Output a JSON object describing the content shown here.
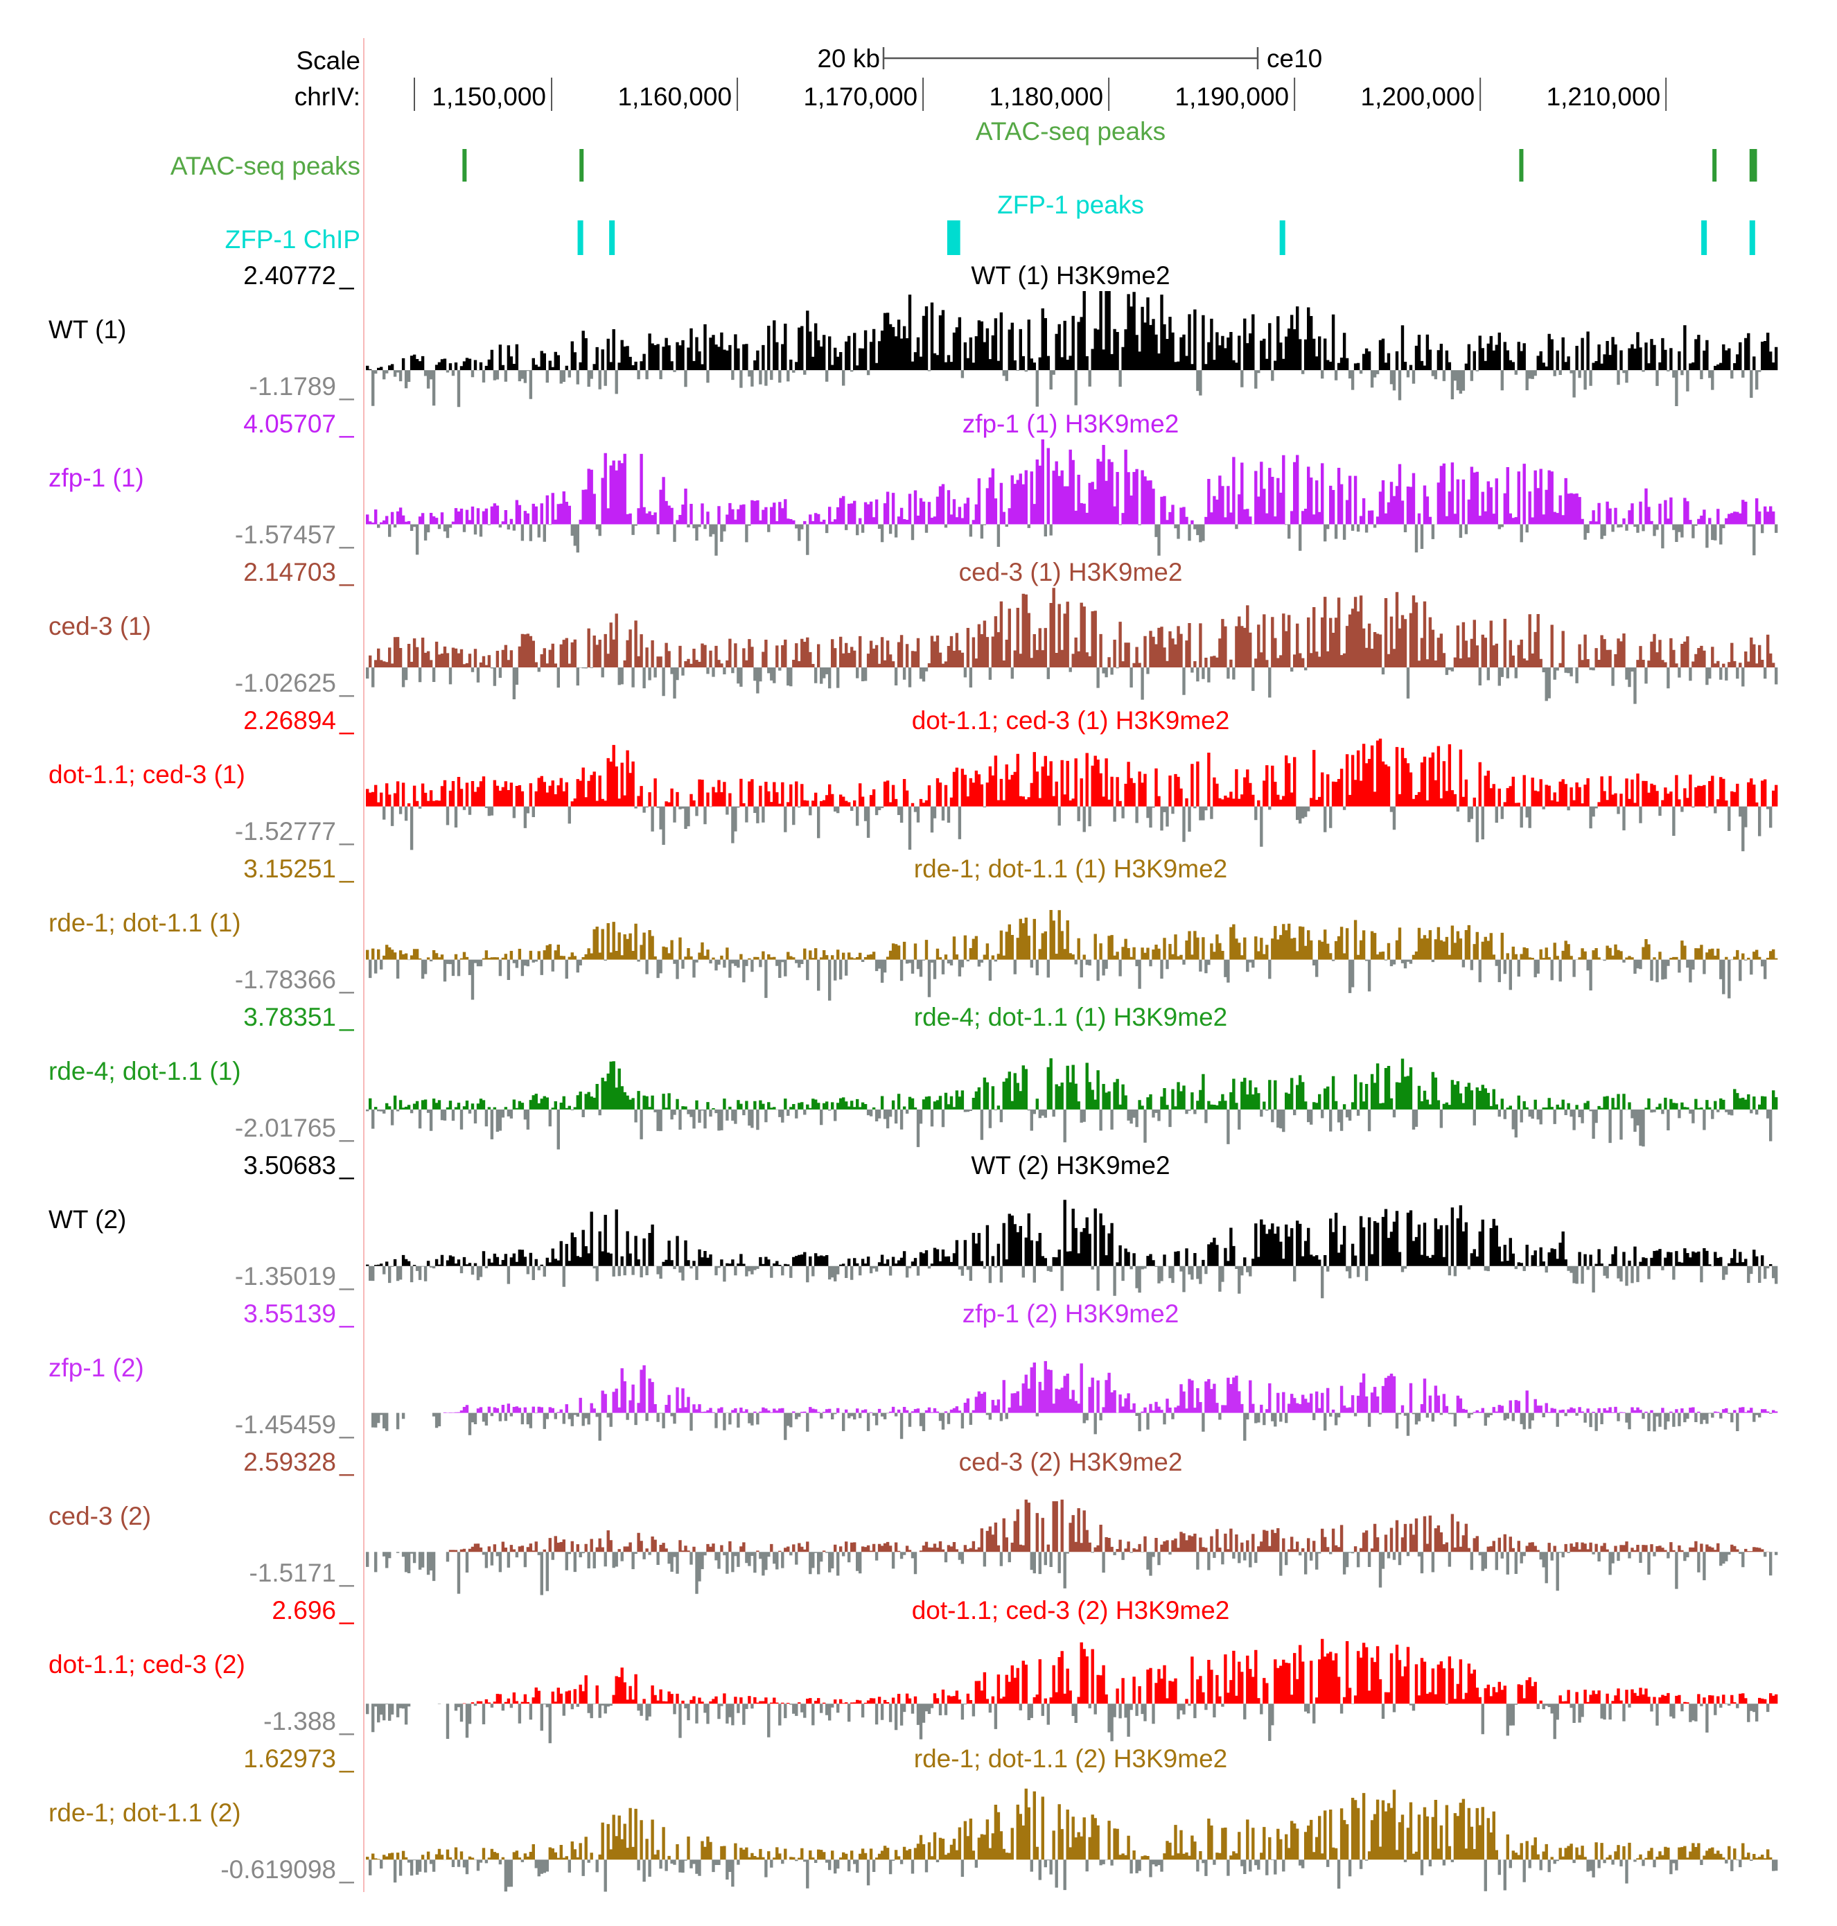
{
  "header": {
    "scale_label": "Scale",
    "scale_bar_label": "20 kb",
    "assembly": "ce10",
    "chrom_label": "chrIV:",
    "ticks": [
      "1,150,000",
      "1,160,000",
      "1,170,000",
      "1,180,000",
      "1,190,000",
      "1,200,000",
      "1,210,000"
    ]
  },
  "region": {
    "start": 1140000,
    "end": 1216000,
    "tick_values": [
      1150000,
      1160000,
      1170000,
      1180000,
      1190000,
      1200000,
      1210000
    ]
  },
  "colors": {
    "neg": "#808888",
    "atac": "#2e9a35",
    "zfp": "#00dcd0"
  },
  "peak_tracks": [
    {
      "id": "atac",
      "label": "ATAC-seq peaks",
      "title": "ATAC-seq peaks",
      "color": "#2e9a35",
      "peaks": [
        [
          1145200,
          1145400
        ],
        [
          1151500,
          1151700
        ],
        [
          1202100,
          1202300
        ],
        [
          1212500,
          1212700
        ],
        [
          1214500,
          1214900
        ]
      ]
    },
    {
      "id": "zfp",
      "label": "ZFP-1 ChIP",
      "title": "ZFP-1 peaks",
      "color": "#00dcd0",
      "peaks": [
        [
          1151400,
          1151700
        ],
        [
          1153100,
          1153400
        ],
        [
          1171300,
          1172000
        ],
        [
          1189200,
          1189500
        ],
        [
          1211900,
          1212200
        ],
        [
          1214500,
          1214800
        ]
      ]
    }
  ],
  "signal_tracks": [
    {
      "label": "WT (1)",
      "title": "WT (1) H3K9me2",
      "max": "2.40772",
      "min": "-1.1789",
      "max_val": 2.40772,
      "min_val": -1.1789,
      "color": "#000000",
      "profile": [
        0.05,
        0.05,
        0.2,
        0.15,
        0.1,
        0.15,
        0.1,
        0.25,
        0.3,
        0.2,
        0.2,
        0.35,
        0.35,
        0.4,
        0.3,
        0.35,
        0.3,
        0.45,
        0.4,
        0.35,
        0.3,
        0.4,
        0.5,
        0.65,
        0.45,
        0.3,
        0.35,
        0.4,
        0.6,
        0.7,
        0.65,
        0.55,
        0.55,
        0.5,
        0.6,
        0.6,
        0.55,
        0.5,
        0.75,
        0.9,
        0.85,
        0.75,
        0.7,
        0.65,
        0.55,
        0.45,
        0.45,
        0.5,
        0.45,
        0.55,
        0.65,
        0.55,
        0.45,
        0.3,
        0.35,
        0.4,
        0.35,
        0.3,
        0.35,
        0.3,
        0.4,
        0.35,
        0.3,
        0.35,
        0.3,
        0.35,
        0.3,
        0.3,
        0.4,
        0.35,
        0.4,
        0.35,
        0.3,
        0.35,
        0.3,
        0.35
      ]
    },
    {
      "label": "zfp-1 (1)",
      "title": "zfp-1 (1) H3K9me2",
      "max": "4.05707",
      "min": "-1.57457",
      "max_val": 4.05707,
      "min_val": -1.57457,
      "color": "#c222f5",
      "profile": [
        0.1,
        0.15,
        0.15,
        0.1,
        0.1,
        0.15,
        0.15,
        0.2,
        0.2,
        0.2,
        0.3,
        0.3,
        0.55,
        0.7,
        0.65,
        0.55,
        0.35,
        0.3,
        0.2,
        0.2,
        0.2,
        0.2,
        0.25,
        0.2,
        0.2,
        0.2,
        0.3,
        0.3,
        0.3,
        0.25,
        0.4,
        0.35,
        0.3,
        0.45,
        0.55,
        0.65,
        0.75,
        0.8,
        0.75,
        0.7,
        0.65,
        0.55,
        0.3,
        0.2,
        0.3,
        0.45,
        0.55,
        0.6,
        0.55,
        0.6,
        0.55,
        0.5,
        0.45,
        0.5,
        0.45,
        0.5,
        0.5,
        0.55,
        0.55,
        0.5,
        0.45,
        0.5,
        0.55,
        0.5,
        0.45,
        0.15,
        0.2,
        0.25,
        0.3,
        0.2,
        0.25,
        0.3,
        0.2,
        0.2,
        0.25,
        0.2
      ]
    },
    {
      "label": "ced-3 (1)",
      "title": "ced-3 (1) H3K9me2",
      "max": "2.14703",
      "min": "-1.02625",
      "max_val": 2.14703,
      "min_val": -1.02625,
      "color": "#a54c3a",
      "profile": [
        0.25,
        0.3,
        0.25,
        0.3,
        0.2,
        0.25,
        0.2,
        0.25,
        0.3,
        0.3,
        0.3,
        0.3,
        0.45,
        0.55,
        0.5,
        0.45,
        0.35,
        0.3,
        0.3,
        0.3,
        0.3,
        0.25,
        0.3,
        0.3,
        0.3,
        0.3,
        0.3,
        0.25,
        0.3,
        0.3,
        0.3,
        0.3,
        0.35,
        0.5,
        0.6,
        0.7,
        0.75,
        0.7,
        0.6,
        0.55,
        0.45,
        0.3,
        0.35,
        0.4,
        0.45,
        0.5,
        0.5,
        0.6,
        0.55,
        0.55,
        0.6,
        0.65,
        0.6,
        0.7,
        0.75,
        0.7,
        0.6,
        0.55,
        0.5,
        0.5,
        0.5,
        0.45,
        0.5,
        0.4,
        0.35,
        0.3,
        0.3,
        0.3,
        0.35,
        0.3,
        0.3,
        0.3,
        0.25,
        0.3,
        0.3,
        0.3
      ]
    },
    {
      "label": "dot-1.1; ced-3 (1)",
      "title": "dot-1.1; ced-3 (1) H3K9me2",
      "max": "2.26894",
      "min": "-1.52777",
      "max_val": 2.26894,
      "min_val": -1.52777,
      "color": "#ff0000",
      "profile": [
        0.2,
        0.25,
        0.25,
        0.25,
        0.3,
        0.3,
        0.3,
        0.35,
        0.3,
        0.35,
        0.3,
        0.35,
        0.45,
        0.65,
        0.55,
        0.35,
        0.3,
        0.3,
        0.3,
        0.25,
        0.3,
        0.3,
        0.25,
        0.25,
        0.25,
        0.25,
        0.25,
        0.2,
        0.3,
        0.35,
        0.4,
        0.45,
        0.5,
        0.55,
        0.5,
        0.55,
        0.55,
        0.6,
        0.55,
        0.6,
        0.55,
        0.45,
        0.4,
        0.45,
        0.45,
        0.55,
        0.6,
        0.55,
        0.6,
        0.55,
        0.6,
        0.55,
        0.6,
        0.65,
        0.7,
        0.65,
        0.6,
        0.65,
        0.7,
        0.55,
        0.3,
        0.3,
        0.35,
        0.3,
        0.3,
        0.3,
        0.3,
        0.3,
        0.35,
        0.3,
        0.35,
        0.3,
        0.35,
        0.3,
        0.35,
        0.35
      ]
    },
    {
      "label": "rde-1; dot-1.1 (1)",
      "title": "rde-1; dot-1.1 (1) H3K9me2",
      "max": "3.15251",
      "min": "-1.78366",
      "max_val": 3.15251,
      "min_val": -1.78366,
      "color": "#a3750f",
      "profile": [
        0.1,
        0.15,
        0.1,
        0.1,
        0.1,
        0.1,
        0.1,
        0.1,
        0.1,
        0.15,
        0.15,
        0.15,
        0.3,
        0.4,
        0.35,
        0.3,
        0.25,
        0.2,
        0.15,
        0.15,
        0.1,
        0.1,
        0.15,
        0.15,
        0.1,
        0.1,
        0.1,
        0.1,
        0.15,
        0.2,
        0.2,
        0.2,
        0.25,
        0.3,
        0.35,
        0.55,
        0.5,
        0.45,
        0.4,
        0.35,
        0.3,
        0.1,
        0.2,
        0.25,
        0.3,
        0.3,
        0.35,
        0.4,
        0.35,
        0.35,
        0.3,
        0.3,
        0.35,
        0.4,
        0.35,
        0.35,
        0.3,
        0.35,
        0.4,
        0.35,
        0.3,
        0.25,
        0.15,
        0.15,
        0.2,
        0.1,
        0.15,
        0.15,
        0.2,
        0.15,
        0.2,
        0.15,
        0.2,
        0.15,
        0.1,
        0.1
      ]
    },
    {
      "label": "rde-4; dot-1.1 (1)",
      "title": "rde-4; dot-1.1 (1) H3K9me2",
      "max": "3.78351",
      "min": "-2.01765",
      "max_val": 3.78351,
      "min_val": -2.01765,
      "color": "#0c8a0c",
      "profile": [
        0.1,
        0.15,
        0.1,
        0.1,
        0.1,
        0.15,
        0.1,
        0.1,
        0.1,
        0.15,
        0.1,
        0.15,
        0.2,
        0.5,
        0.2,
        0.15,
        0.15,
        0.15,
        0.1,
        0.1,
        0.1,
        0.1,
        0.1,
        0.1,
        0.1,
        0.15,
        0.1,
        0.1,
        0.15,
        0.15,
        0.15,
        0.2,
        0.25,
        0.3,
        0.35,
        0.4,
        0.45,
        0.5,
        0.45,
        0.4,
        0.3,
        0.2,
        0.15,
        0.3,
        0.35,
        0.3,
        0.35,
        0.3,
        0.3,
        0.35,
        0.3,
        0.3,
        0.35,
        0.4,
        0.45,
        0.5,
        0.45,
        0.35,
        0.3,
        0.3,
        0.25,
        0.15,
        0.15,
        0.1,
        0.1,
        0.1,
        0.15,
        0.15,
        0.1,
        0.1,
        0.15,
        0.1,
        0.15,
        0.2,
        0.25,
        0.2
      ]
    },
    {
      "label": "WT (2)",
      "title": "WT (2) H3K9me2",
      "max": "3.50683",
      "min": "-1.35019",
      "max_val": 3.50683,
      "min_val": -1.35019,
      "color": "#000000",
      "profile": [
        0.05,
        0.05,
        0.1,
        0.05,
        0.1,
        0.1,
        0.15,
        0.1,
        0.15,
        0.1,
        0.15,
        0.35,
        0.45,
        0.55,
        0.5,
        0.4,
        0.3,
        0.25,
        0.15,
        0.1,
        0.1,
        0.1,
        0.1,
        0.15,
        0.1,
        0.1,
        0.1,
        0.15,
        0.1,
        0.15,
        0.15,
        0.2,
        0.3,
        0.4,
        0.45,
        0.5,
        0.5,
        0.6,
        0.55,
        0.45,
        0.3,
        0.15,
        0.1,
        0.15,
        0.2,
        0.35,
        0.4,
        0.45,
        0.4,
        0.45,
        0.45,
        0.5,
        0.45,
        0.45,
        0.5,
        0.55,
        0.5,
        0.45,
        0.5,
        0.55,
        0.4,
        0.2,
        0.2,
        0.25,
        0.3,
        0.2,
        0.15,
        0.2,
        0.15,
        0.15,
        0.15,
        0.15,
        0.15,
        0.15,
        0.15,
        0.1
      ]
    },
    {
      "label": "zfp-1 (2)",
      "title": "zfp-1 (2) H3K9me2",
      "max": "3.55139",
      "min": "-1.45459",
      "max_val": 3.55139,
      "min_val": -1.45459,
      "color": "#c730f5",
      "profile": [
        0.0,
        0.0,
        0.0,
        0.0,
        0.0,
        0.05,
        0.1,
        0.1,
        0.1,
        0.1,
        0.05,
        0.1,
        0.2,
        0.35,
        0.45,
        0.4,
        0.3,
        0.2,
        0.05,
        0.05,
        0.05,
        0.05,
        0.05,
        0.05,
        0.05,
        0.05,
        0.05,
        0.05,
        0.05,
        0.05,
        0.05,
        0.05,
        0.15,
        0.25,
        0.3,
        0.4,
        0.45,
        0.5,
        0.45,
        0.4,
        0.3,
        0.05,
        0.1,
        0.3,
        0.35,
        0.4,
        0.4,
        0.35,
        0.3,
        0.2,
        0.15,
        0.25,
        0.3,
        0.35,
        0.35,
        0.3,
        0.3,
        0.25,
        0.2,
        0.05,
        0.05,
        0.15,
        0.2,
        0.05,
        0.05,
        0.05,
        0.05,
        0.05,
        0.05,
        0.05,
        0.05,
        0.05,
        0.05,
        0.05,
        0.05,
        0.05
      ]
    },
    {
      "label": "ced-3 (2)",
      "title": "ced-3 (2) H3K9me2",
      "max": "2.59328",
      "min": "-1.5171",
      "max_val": 2.59328,
      "min_val": -1.5171,
      "color": "#a54c3a",
      "profile": [
        0.0,
        0.0,
        0.0,
        0.0,
        0.0,
        0.05,
        0.1,
        0.1,
        0.1,
        0.1,
        0.15,
        0.15,
        0.2,
        0.25,
        0.2,
        0.15,
        0.15,
        0.1,
        0.1,
        0.1,
        0.1,
        0.1,
        0.1,
        0.1,
        0.1,
        0.1,
        0.1,
        0.1,
        0.1,
        0.1,
        0.1,
        0.1,
        0.15,
        0.25,
        0.35,
        0.5,
        0.55,
        0.5,
        0.45,
        0.3,
        0.15,
        0.15,
        0.15,
        0.2,
        0.2,
        0.25,
        0.25,
        0.2,
        0.25,
        0.2,
        0.2,
        0.25,
        0.25,
        0.25,
        0.3,
        0.3,
        0.35,
        0.4,
        0.35,
        0.3,
        0.25,
        0.15,
        0.1,
        0.1,
        0.1,
        0.1,
        0.1,
        0.1,
        0.1,
        0.1,
        0.1,
        0.1,
        0.1,
        0.05,
        0.05,
        0.0
      ]
    },
    {
      "label": "dot-1.1; ced-3 (2)",
      "title": "dot-1.1; ced-3 (2) H3K9me2",
      "max": "2.696",
      "min": "-1.388",
      "max_val": 2.696,
      "min_val": -1.388,
      "color": "#ff0000",
      "profile": [
        0.0,
        0.0,
        0.0,
        0.0,
        0.0,
        0.0,
        0.05,
        0.1,
        0.1,
        0.15,
        0.15,
        0.2,
        0.3,
        0.35,
        0.3,
        0.2,
        0.15,
        0.15,
        0.1,
        0.1,
        0.1,
        0.1,
        0.05,
        0.05,
        0.05,
        0.05,
        0.05,
        0.05,
        0.1,
        0.1,
        0.1,
        0.15,
        0.2,
        0.3,
        0.35,
        0.4,
        0.45,
        0.5,
        0.55,
        0.45,
        0.3,
        0.3,
        0.35,
        0.4,
        0.45,
        0.45,
        0.5,
        0.5,
        0.45,
        0.5,
        0.55,
        0.6,
        0.6,
        0.55,
        0.5,
        0.55,
        0.5,
        0.45,
        0.45,
        0.35,
        0.25,
        0.2,
        0.25,
        0.2,
        0.15,
        0.15,
        0.15,
        0.15,
        0.15,
        0.1,
        0.1,
        0.1,
        0.1,
        0.1,
        0.1,
        0.1
      ]
    },
    {
      "label": "rde-1; dot-1.1 (2)",
      "title": "rde-1; dot-1.1 (2) H3K9me2",
      "max": "1.62973",
      "min": "-0.619098",
      "max_val": 1.62973,
      "min_val": -0.619098,
      "color": "#a3750f",
      "profile": [
        0.05,
        0.05,
        0.1,
        0.1,
        0.1,
        0.1,
        0.1,
        0.1,
        0.1,
        0.15,
        0.15,
        0.15,
        0.25,
        0.4,
        0.45,
        0.35,
        0.3,
        0.25,
        0.2,
        0.15,
        0.15,
        0.1,
        0.1,
        0.1,
        0.1,
        0.1,
        0.1,
        0.1,
        0.15,
        0.2,
        0.25,
        0.3,
        0.35,
        0.45,
        0.55,
        0.6,
        0.55,
        0.5,
        0.45,
        0.4,
        0.35,
        0.15,
        0.25,
        0.3,
        0.3,
        0.35,
        0.3,
        0.35,
        0.35,
        0.4,
        0.35,
        0.45,
        0.5,
        0.55,
        0.6,
        0.55,
        0.45,
        0.5,
        0.55,
        0.45,
        0.4,
        0.3,
        0.2,
        0.15,
        0.15,
        0.15,
        0.15,
        0.15,
        0.1,
        0.15,
        0.15,
        0.15,
        0.1,
        0.15,
        0.1,
        0.1
      ]
    }
  ]
}
